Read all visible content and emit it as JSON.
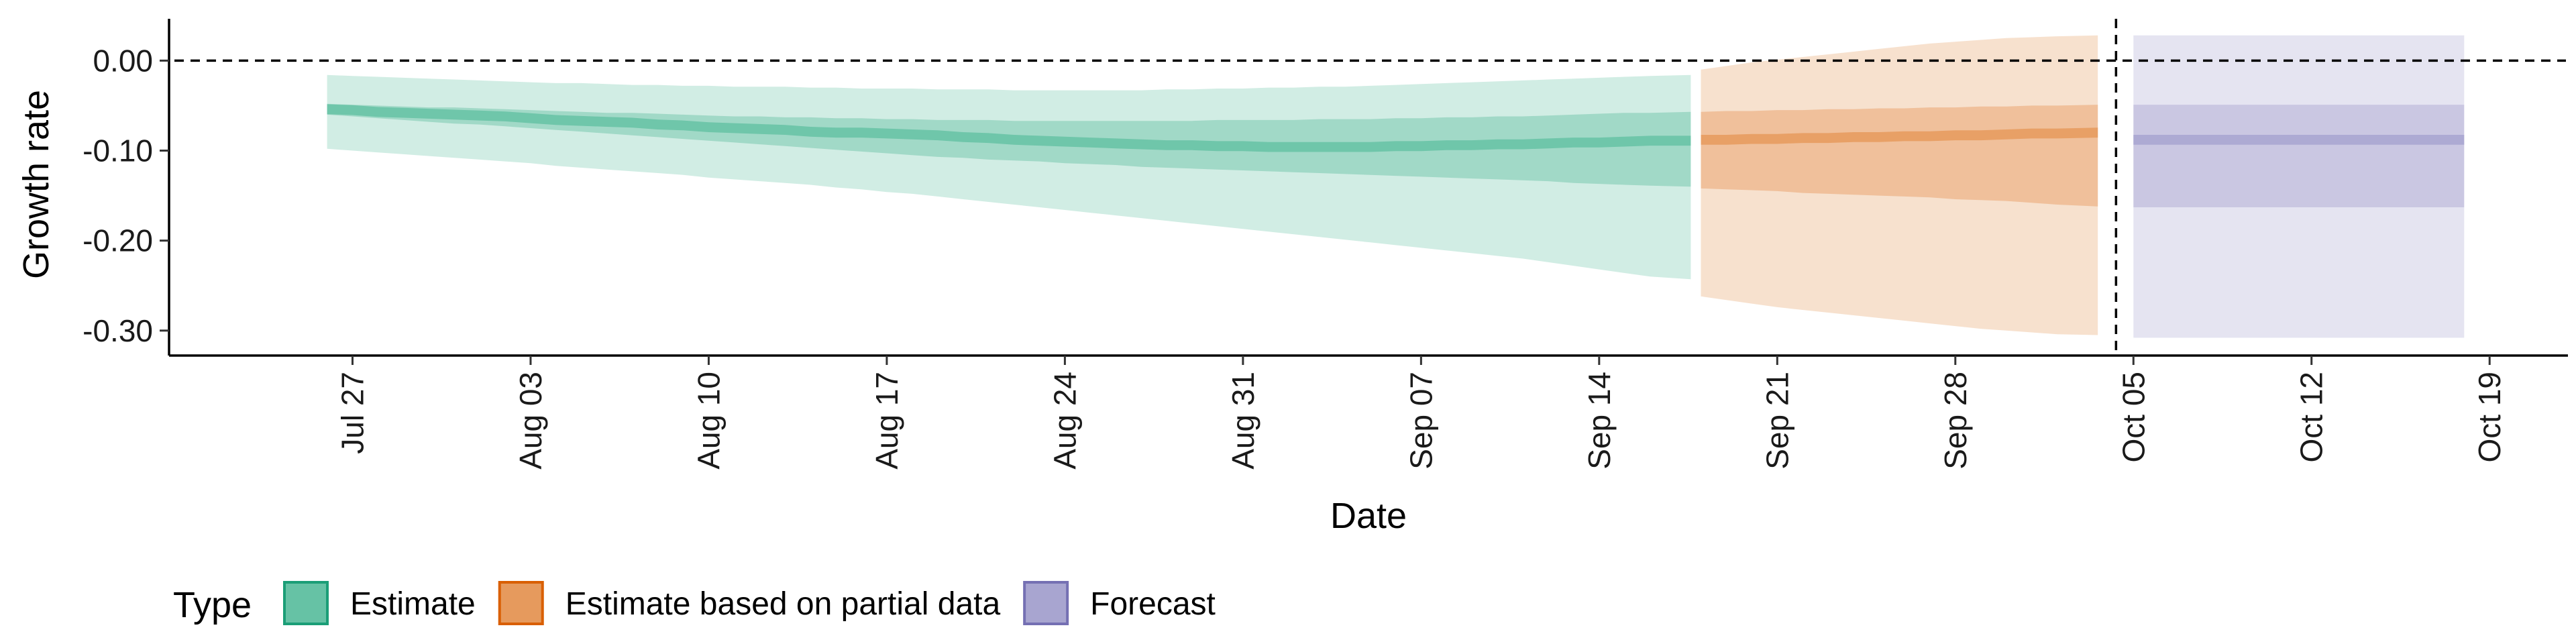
{
  "chart_data": {
    "type": "area",
    "xlabel": "Date",
    "ylabel": "Growth rate",
    "x_ticks": [
      "Jul 27",
      "Aug 03",
      "Aug 10",
      "Aug 17",
      "Aug 24",
      "Aug 31",
      "Sep 07",
      "Sep 14",
      "Sep 21",
      "Sep 28",
      "Oct 05",
      "Oct 12",
      "Oct 19"
    ],
    "x_tick_dates": [
      "2020-07-27",
      "2020-08-03",
      "2020-08-10",
      "2020-08-17",
      "2020-08-24",
      "2020-08-31",
      "2020-09-07",
      "2020-09-14",
      "2020-09-21",
      "2020-09-28",
      "2020-10-05",
      "2020-10-12",
      "2020-10-19"
    ],
    "xlim": [
      "2020-07-20",
      "2020-10-22"
    ],
    "y_ticks": [
      "0.00",
      "-0.10",
      "-0.20",
      "-0.30"
    ],
    "y_tick_values": [
      0,
      -0.1,
      -0.2,
      -0.3
    ],
    "ylim": [
      -0.324,
      0.045
    ],
    "grid": false,
    "reference_lines": [
      {
        "orientation": "horizontal",
        "y": 0,
        "style": "dashed"
      },
      {
        "orientation": "vertical",
        "x": "2020-10-04",
        "style": "dashed"
      }
    ],
    "legend": {
      "title": "Type",
      "position": "bottom",
      "entries": [
        {
          "label": "Estimate",
          "fill": "#66C2A5",
          "stroke": "#1B9E77"
        },
        {
          "label": "Estimate based on partial data",
          "fill": "#E69A5D",
          "stroke": "#D95F02"
        },
        {
          "label": "Forecast",
          "fill": "#A8A5D0",
          "stroke": "#7570B3"
        }
      ]
    },
    "series": [
      {
        "name": "Estimate",
        "fill": "#66C2A5",
        "x": [
          "2020-07-26",
          "2020-07-27",
          "2020-07-28",
          "2020-07-29",
          "2020-07-30",
          "2020-07-31",
          "2020-08-01",
          "2020-08-02",
          "2020-08-03",
          "2020-08-04",
          "2020-08-05",
          "2020-08-06",
          "2020-08-07",
          "2020-08-08",
          "2020-08-09",
          "2020-08-10",
          "2020-08-11",
          "2020-08-12",
          "2020-08-13",
          "2020-08-14",
          "2020-08-15",
          "2020-08-16",
          "2020-08-17",
          "2020-08-18",
          "2020-08-19",
          "2020-08-20",
          "2020-08-21",
          "2020-08-22",
          "2020-08-23",
          "2020-08-24",
          "2020-08-25",
          "2020-08-26",
          "2020-08-27",
          "2020-08-28",
          "2020-08-29",
          "2020-08-30",
          "2020-08-31",
          "2020-09-01",
          "2020-09-02",
          "2020-09-03",
          "2020-09-04",
          "2020-09-05",
          "2020-09-06",
          "2020-09-07",
          "2020-09-08",
          "2020-09-09",
          "2020-09-10",
          "2020-09-11",
          "2020-09-12",
          "2020-09-13",
          "2020-09-14",
          "2020-09-15",
          "2020-09-16",
          "2020-09-17"
        ],
        "median": [
          -0.054,
          -0.055,
          -0.057,
          -0.058,
          -0.059,
          -0.06,
          -0.061,
          -0.062,
          -0.064,
          -0.066,
          -0.067,
          -0.068,
          -0.069,
          -0.071,
          -0.072,
          -0.074,
          -0.075,
          -0.076,
          -0.077,
          -0.079,
          -0.08,
          -0.08,
          -0.081,
          -0.082,
          -0.083,
          -0.085,
          -0.086,
          -0.088,
          -0.089,
          -0.09,
          -0.091,
          -0.092,
          -0.093,
          -0.094,
          -0.094,
          -0.095,
          -0.095,
          -0.096,
          -0.096,
          -0.096,
          -0.096,
          -0.096,
          -0.095,
          -0.095,
          -0.094,
          -0.094,
          -0.093,
          -0.093,
          -0.092,
          -0.091,
          -0.091,
          -0.09,
          -0.089,
          -0.089
        ],
        "lower_50": [
          -0.06,
          -0.062,
          -0.064,
          -0.066,
          -0.068,
          -0.07,
          -0.071,
          -0.073,
          -0.075,
          -0.077,
          -0.079,
          -0.081,
          -0.083,
          -0.085,
          -0.087,
          -0.089,
          -0.091,
          -0.093,
          -0.095,
          -0.097,
          -0.099,
          -0.101,
          -0.103,
          -0.105,
          -0.107,
          -0.108,
          -0.11,
          -0.111,
          -0.112,
          -0.114,
          -0.115,
          -0.116,
          -0.118,
          -0.119,
          -0.12,
          -0.121,
          -0.122,
          -0.123,
          -0.124,
          -0.125,
          -0.126,
          -0.127,
          -0.128,
          -0.129,
          -0.13,
          -0.131,
          -0.132,
          -0.133,
          -0.134,
          -0.136,
          -0.137,
          -0.138,
          -0.139,
          -0.14
        ],
        "upper_50": [
          -0.048,
          -0.049,
          -0.05,
          -0.051,
          -0.052,
          -0.052,
          -0.053,
          -0.054,
          -0.055,
          -0.056,
          -0.057,
          -0.058,
          -0.058,
          -0.059,
          -0.06,
          -0.061,
          -0.062,
          -0.062,
          -0.063,
          -0.063,
          -0.064,
          -0.064,
          -0.065,
          -0.065,
          -0.066,
          -0.066,
          -0.066,
          -0.067,
          -0.067,
          -0.067,
          -0.067,
          -0.067,
          -0.067,
          -0.067,
          -0.067,
          -0.066,
          -0.066,
          -0.066,
          -0.066,
          -0.065,
          -0.065,
          -0.065,
          -0.064,
          -0.064,
          -0.063,
          -0.063,
          -0.062,
          -0.062,
          -0.061,
          -0.06,
          -0.059,
          -0.058,
          -0.058,
          -0.057
        ],
        "lower_90": [
          -0.098,
          -0.1,
          -0.102,
          -0.104,
          -0.106,
          -0.108,
          -0.11,
          -0.112,
          -0.114,
          -0.117,
          -0.119,
          -0.121,
          -0.123,
          -0.125,
          -0.127,
          -0.13,
          -0.132,
          -0.134,
          -0.136,
          -0.138,
          -0.141,
          -0.143,
          -0.146,
          -0.148,
          -0.151,
          -0.154,
          -0.157,
          -0.16,
          -0.163,
          -0.166,
          -0.169,
          -0.172,
          -0.175,
          -0.178,
          -0.181,
          -0.184,
          -0.187,
          -0.19,
          -0.193,
          -0.196,
          -0.199,
          -0.202,
          -0.205,
          -0.208,
          -0.211,
          -0.214,
          -0.217,
          -0.22,
          -0.224,
          -0.228,
          -0.232,
          -0.236,
          -0.24,
          -0.243
        ],
        "upper_90": [
          -0.016,
          -0.017,
          -0.018,
          -0.019,
          -0.02,
          -0.021,
          -0.022,
          -0.023,
          -0.024,
          -0.025,
          -0.025,
          -0.026,
          -0.027,
          -0.027,
          -0.028,
          -0.028,
          -0.029,
          -0.029,
          -0.029,
          -0.03,
          -0.03,
          -0.031,
          -0.031,
          -0.031,
          -0.032,
          -0.032,
          -0.032,
          -0.033,
          -0.033,
          -0.033,
          -0.033,
          -0.033,
          -0.033,
          -0.032,
          -0.032,
          -0.031,
          -0.031,
          -0.03,
          -0.03,
          -0.029,
          -0.029,
          -0.028,
          -0.027,
          -0.026,
          -0.025,
          -0.024,
          -0.023,
          -0.022,
          -0.021,
          -0.02,
          -0.019,
          -0.018,
          -0.017,
          -0.016
        ]
      },
      {
        "name": "Estimate based on partial data",
        "fill": "#E69A5D",
        "x": [
          "2020-09-18",
          "2020-09-19",
          "2020-09-20",
          "2020-09-21",
          "2020-09-22",
          "2020-09-23",
          "2020-09-24",
          "2020-09-25",
          "2020-09-26",
          "2020-09-27",
          "2020-09-28",
          "2020-09-29",
          "2020-09-30",
          "2020-10-01",
          "2020-10-02",
          "2020-10-03"
        ],
        "median": [
          -0.088,
          -0.088,
          -0.087,
          -0.087,
          -0.086,
          -0.086,
          -0.085,
          -0.085,
          -0.084,
          -0.084,
          -0.083,
          -0.083,
          -0.082,
          -0.081,
          -0.081,
          -0.08
        ],
        "lower_50": [
          -0.142,
          -0.143,
          -0.144,
          -0.145,
          -0.147,
          -0.148,
          -0.149,
          -0.15,
          -0.151,
          -0.152,
          -0.154,
          -0.155,
          -0.156,
          -0.158,
          -0.16,
          -0.162
        ],
        "upper_50": [
          -0.057,
          -0.056,
          -0.056,
          -0.055,
          -0.055,
          -0.054,
          -0.054,
          -0.053,
          -0.053,
          -0.052,
          -0.052,
          -0.051,
          -0.051,
          -0.05,
          -0.05,
          -0.049
        ],
        "lower_90": [
          -0.262,
          -0.266,
          -0.27,
          -0.274,
          -0.277,
          -0.28,
          -0.283,
          -0.286,
          -0.289,
          -0.292,
          -0.295,
          -0.298,
          -0.3,
          -0.302,
          -0.304,
          -0.305
        ],
        "upper_90": [
          -0.01,
          -0.006,
          -0.002,
          0.001,
          0.004,
          0.007,
          0.01,
          0.013,
          0.016,
          0.019,
          0.021,
          0.023,
          0.025,
          0.026,
          0.027,
          0.028
        ]
      },
      {
        "name": "Forecast",
        "fill": "#A8A5D0",
        "x": [
          "2020-10-05",
          "2020-10-18"
        ],
        "median": [
          -0.088,
          -0.088
        ],
        "lower_50": [
          -0.163,
          -0.163
        ],
        "upper_50": [
          -0.049,
          -0.049
        ],
        "lower_90": [
          -0.308,
          -0.308
        ],
        "upper_90": [
          0.028,
          0.028
        ]
      }
    ]
  }
}
